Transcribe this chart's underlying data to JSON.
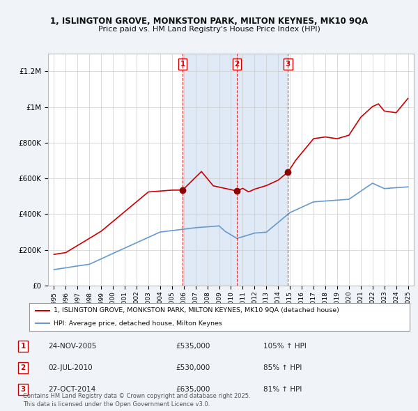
{
  "title_line1": "1, ISLINGTON GROVE, MONKSTON PARK, MILTON KEYNES, MK10 9QA",
  "title_line2": "Price paid vs. HM Land Registry's House Price Index (HPI)",
  "red_line_label": "1, ISLINGTON GROVE, MONKSTON PARK, MILTON KEYNES, MK10 9QA (detached house)",
  "blue_line_label": "HPI: Average price, detached house, Milton Keynes",
  "sale_markers": [
    {
      "num": 1,
      "date": "24-NOV-2005",
      "price": "£535,000",
      "pct": "105%",
      "arrow": "↑",
      "x_year": 2005.9
    },
    {
      "num": 2,
      "date": "02-JUL-2010",
      "price": "£530,000",
      "pct": "85%",
      "arrow": "↑",
      "x_year": 2010.5
    },
    {
      "num": 3,
      "date": "27-OCT-2014",
      "price": "£635,000",
      "pct": "81%",
      "arrow": "↑",
      "x_year": 2014.83
    }
  ],
  "footer": "Contains HM Land Registry data © Crown copyright and database right 2025.\nThis data is licensed under the Open Government Licence v3.0.",
  "ylim": [
    0,
    1300000
  ],
  "xlim_start": 1994.5,
  "xlim_end": 2025.5,
  "background_color": "#f0f4f8",
  "plot_bg_color": "#ffffff",
  "shade_color": "#dce8f5",
  "red_color": "#cc0000",
  "blue_color": "#6699cc",
  "grid_color": "#cccccc",
  "y_ticks": [
    0,
    200000,
    400000,
    600000,
    800000,
    1000000,
    1200000
  ],
  "y_labels": [
    "£0",
    "£200K",
    "£400K",
    "£600K",
    "£800K",
    "£1M",
    "£1.2M"
  ]
}
